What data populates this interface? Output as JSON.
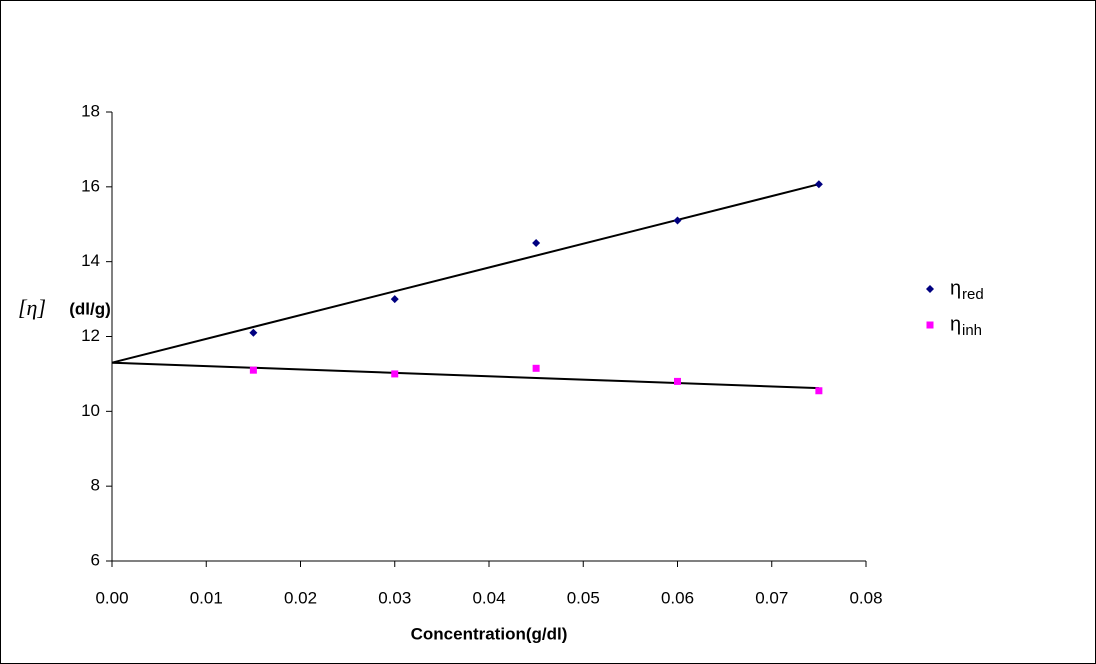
{
  "chart_data": {
    "type": "scatter",
    "xlabel": "Concentration(g/dl)",
    "ylabel_symbol": "[η]",
    "ylabel": "(dl/g)",
    "xlim": [
      0,
      0.08
    ],
    "xticks": [
      {
        "value": 0,
        "label": "0.00"
      },
      {
        "value": 0.01,
        "label": "0.01"
      },
      {
        "value": 0.02,
        "label": "0.02"
      },
      {
        "value": 0.03,
        "label": "0.03"
      },
      {
        "value": 0.04,
        "label": "0.04"
      },
      {
        "value": 0.05,
        "label": "0.05"
      },
      {
        "value": 0.06,
        "label": "0.06"
      },
      {
        "value": 0.07,
        "label": "0.07"
      },
      {
        "value": 0.08,
        "label": "0.08"
      }
    ],
    "ylim": [
      6,
      18
    ],
    "yticks": [
      6,
      8,
      10,
      12,
      14,
      16,
      18
    ],
    "series": [
      {
        "name": "η",
        "subscript": "red",
        "color": "#000080",
        "marker": "diamond",
        "x": [
          0.015,
          0.03,
          0.045,
          0.06,
          0.075
        ],
        "values": [
          12.1,
          13.0,
          14.5,
          15.1,
          16.07
        ],
        "trendline": {
          "x": [
            0,
            0.075
          ],
          "values": [
            11.3,
            16.07
          ]
        }
      },
      {
        "name": "η",
        "subscript": "inh",
        "color": "#ff00ff",
        "marker": "square",
        "x": [
          0.015,
          0.03,
          0.045,
          0.06,
          0.075
        ],
        "values": [
          11.1,
          11.0,
          11.15,
          10.8,
          10.55
        ],
        "trendline": {
          "x": [
            0,
            0.075
          ],
          "values": [
            11.3,
            10.62
          ]
        }
      }
    ]
  }
}
